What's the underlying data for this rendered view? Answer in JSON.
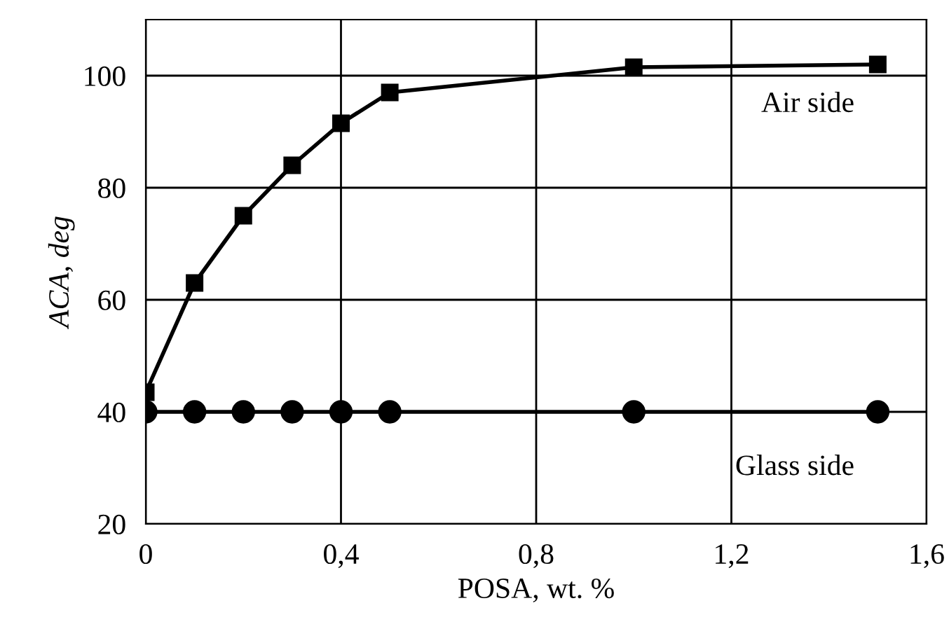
{
  "chart_data": {
    "type": "line",
    "xlabel": "POSA, wt. %",
    "ylabel": "ACA, deg",
    "x": [
      0,
      0.1,
      0.2,
      0.3,
      0.4,
      0.5,
      1.0,
      1.5
    ],
    "series": [
      {
        "name": "Air side",
        "color": "#000000",
        "marker": "square",
        "values": [
          43.5,
          63,
          75,
          84,
          91.5,
          97,
          101.5,
          102
        ]
      },
      {
        "name": "Glass side",
        "color": "#000000",
        "marker": "circle",
        "values": [
          40,
          40,
          40,
          40,
          40,
          40,
          40,
          40
        ]
      }
    ],
    "xlim": [
      0,
      1.6
    ],
    "ylim": [
      20,
      110
    ],
    "xticks": [
      {
        "value": 0,
        "label": "0"
      },
      {
        "value": 0.4,
        "label": "0,4"
      },
      {
        "value": 0.8,
        "label": "0,8"
      },
      {
        "value": 1.2,
        "label": "1,2"
      },
      {
        "value": 1.6,
        "label": "1,6"
      }
    ],
    "yticks": [
      20,
      40,
      60,
      80,
      100
    ],
    "grid": true,
    "legend": false,
    "line_style": "solid"
  }
}
